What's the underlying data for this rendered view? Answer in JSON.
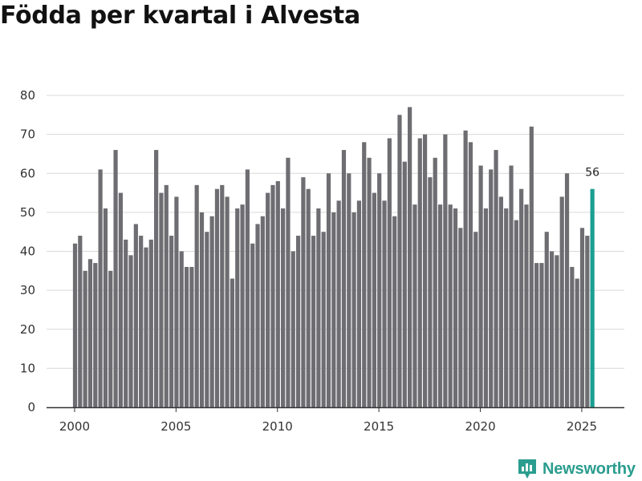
{
  "chart_data": {
    "type": "bar",
    "title": "Födda per kvartal i Alvesta",
    "xlabel": "",
    "ylabel": "",
    "ylim": [
      0,
      80
    ],
    "yticks": [
      0,
      10,
      20,
      30,
      40,
      50,
      60,
      70,
      80
    ],
    "xticks": [
      2000,
      2005,
      2010,
      2015,
      2020,
      2025
    ],
    "x_start": 2000,
    "period_step": 0.25,
    "values": [
      42,
      44,
      35,
      38,
      37,
      61,
      51,
      35,
      66,
      55,
      43,
      39,
      47,
      44,
      41,
      43,
      66,
      55,
      57,
      44,
      54,
      40,
      36,
      36,
      57,
      50,
      45,
      49,
      56,
      57,
      54,
      33,
      51,
      52,
      61,
      42,
      47,
      49,
      55,
      57,
      58,
      51,
      64,
      40,
      44,
      59,
      56,
      44,
      51,
      45,
      60,
      50,
      53,
      66,
      60,
      50,
      53,
      68,
      64,
      55,
      60,
      53,
      69,
      49,
      75,
      63,
      77,
      52,
      69,
      70,
      59,
      64,
      52,
      70,
      52,
      51,
      46,
      71,
      68,
      45,
      62,
      51,
      61,
      66,
      54,
      51,
      62,
      48,
      56,
      52,
      72,
      37,
      37,
      45,
      40,
      39,
      54,
      60,
      36,
      33,
      46,
      44,
      56
    ],
    "highlight_label": "56",
    "colors": {
      "bar": "#6e6e72",
      "highlight": "#1a9e93",
      "grid": "#d9d9d9",
      "axis": "#333333"
    }
  },
  "branding": {
    "name": "Newsworthy"
  }
}
